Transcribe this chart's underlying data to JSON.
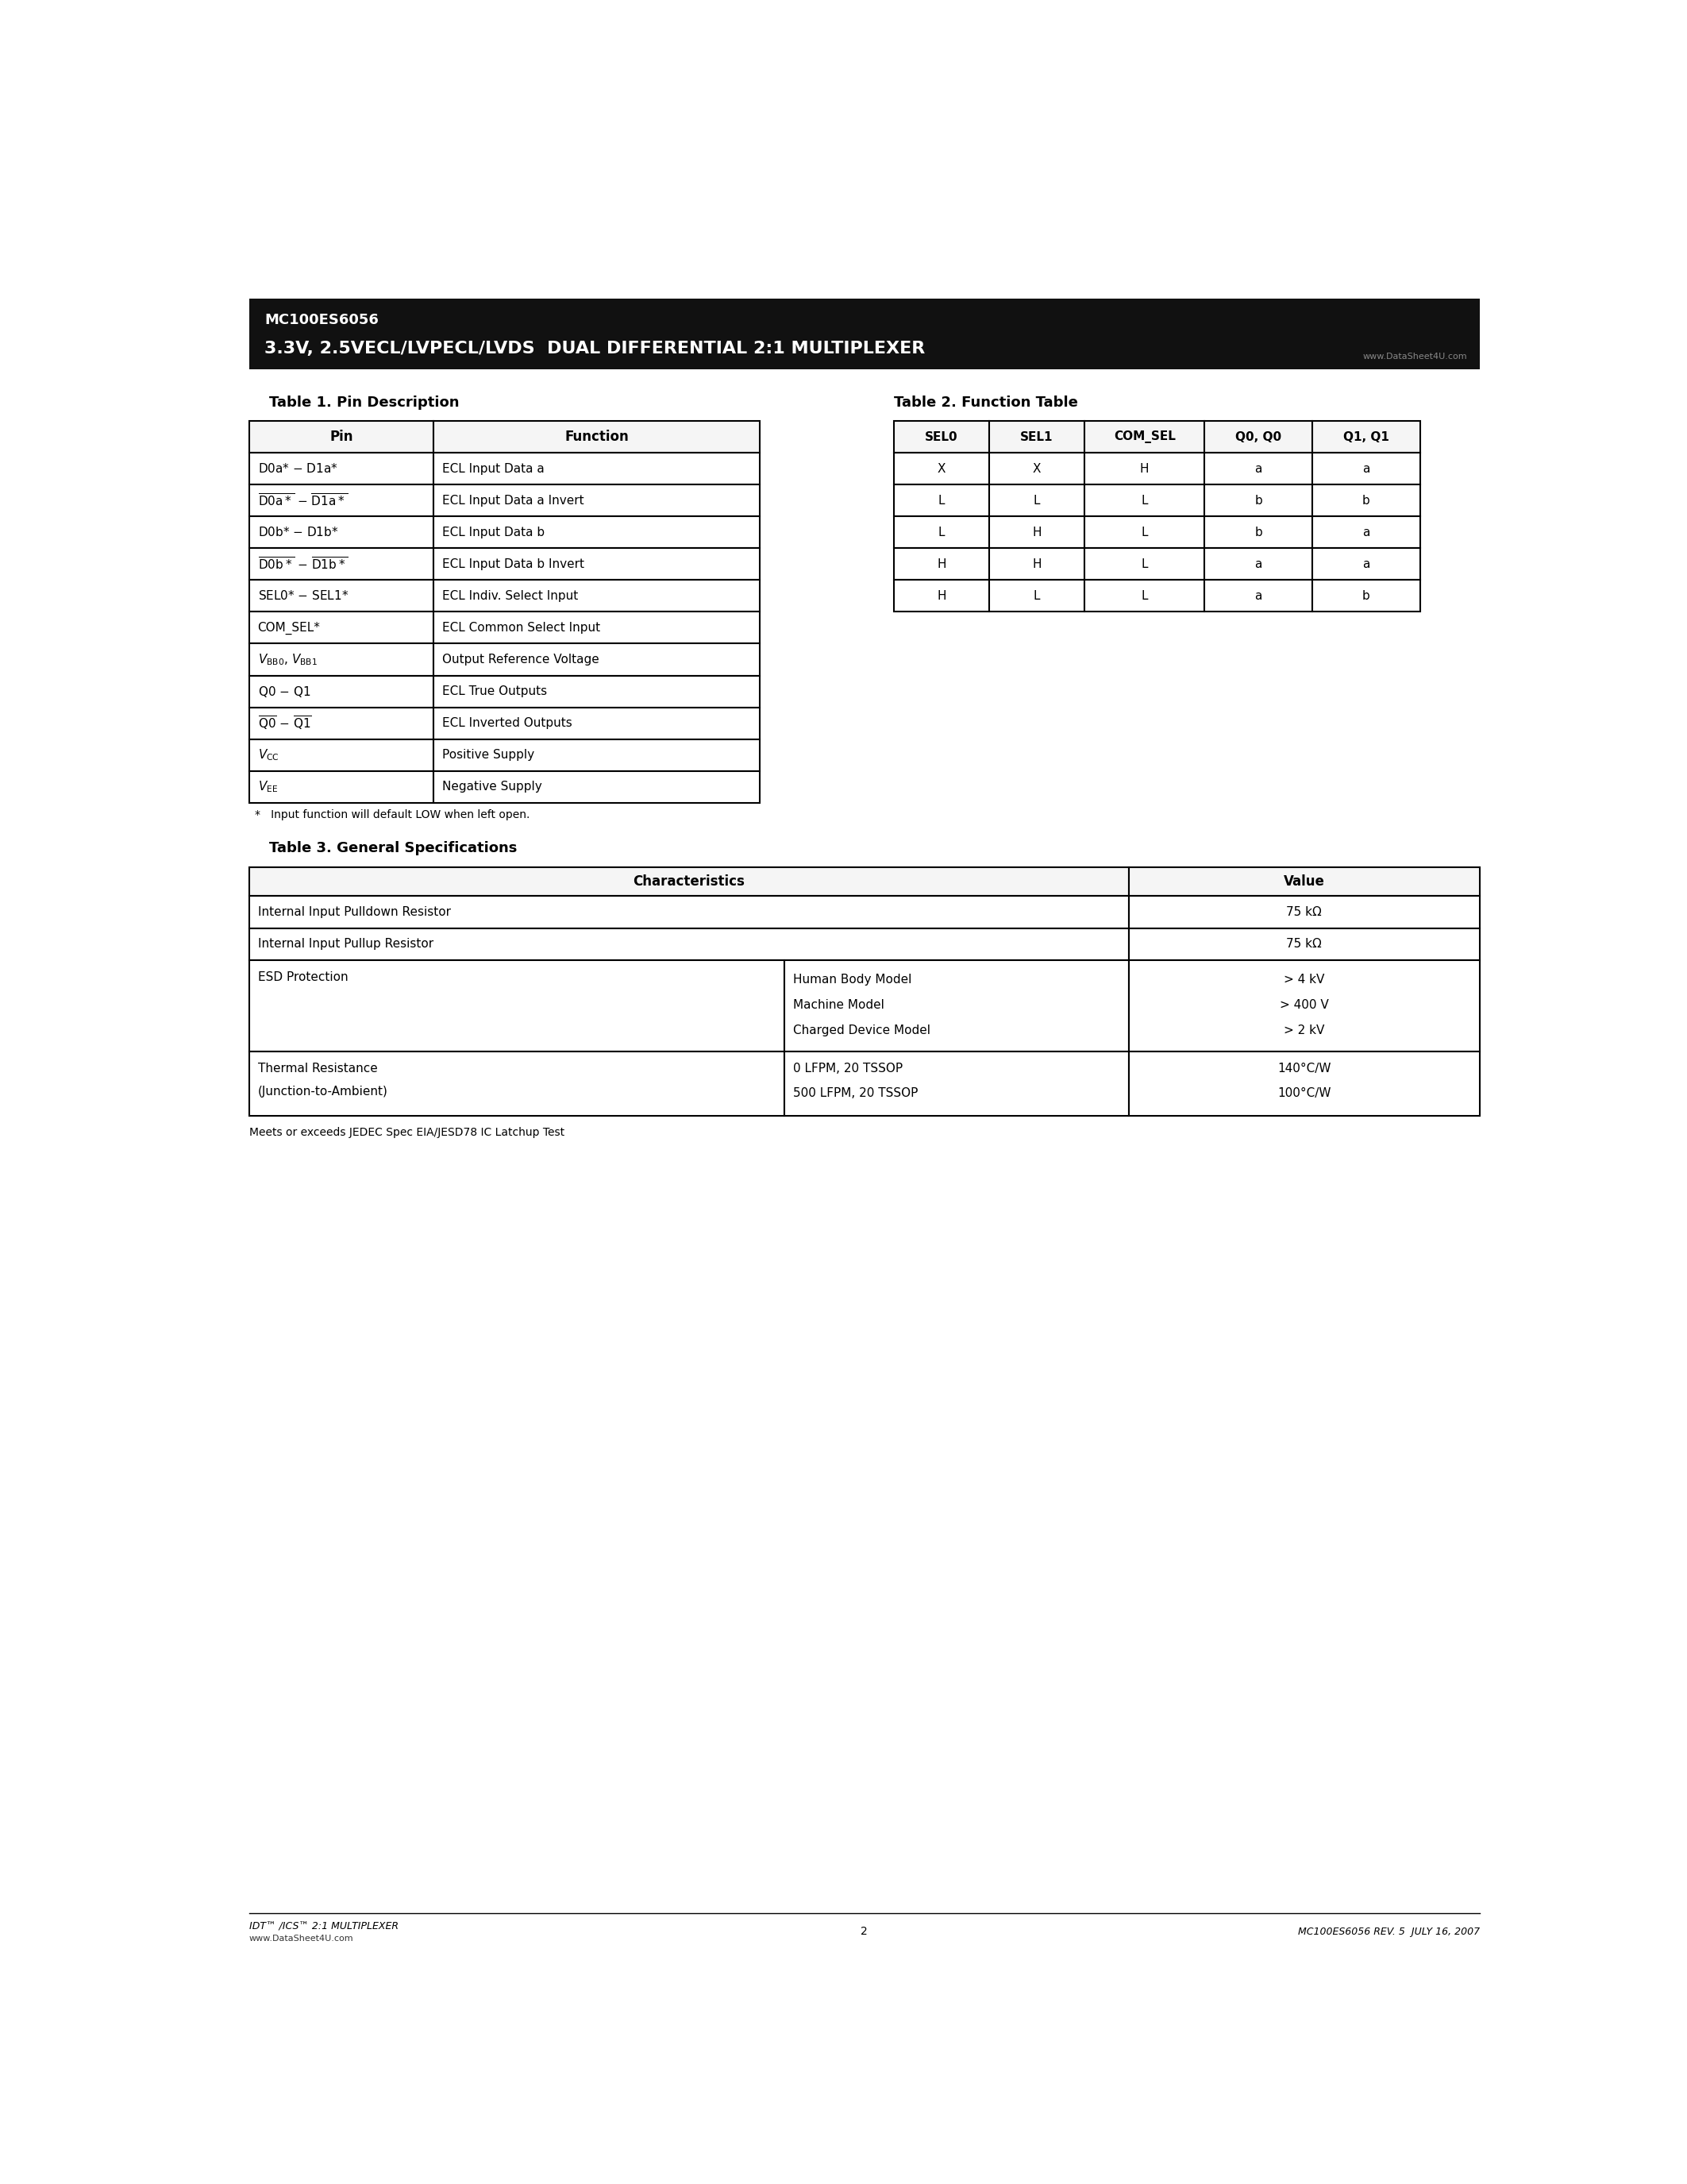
{
  "page_bg": "#ffffff",
  "header_bg": "#111111",
  "header_text1": "MC100ES6056",
  "header_text2": "3.3V, 2.5VECL/LVPECL/LVDS  DUAL DIFFERENTIAL 2:1 MULTIPLEXER",
  "watermark": "www.DataSheet4U.com",
  "table1_title": "Table 1. Pin Description",
  "table2_title": "Table 2. Function Table",
  "table2_headers": [
    "SEL0",
    "SEL1",
    "COM_SEL",
    "Q0, Q0",
    "Q1, Q1"
  ],
  "table2_rows": [
    [
      "X",
      "X",
      "H",
      "a",
      "a"
    ],
    [
      "L",
      "L",
      "L",
      "b",
      "b"
    ],
    [
      "L",
      "H",
      "L",
      "b",
      "a"
    ],
    [
      "H",
      "H",
      "L",
      "a",
      "a"
    ],
    [
      "H",
      "L",
      "L",
      "a",
      "b"
    ]
  ],
  "table3_title": "Table 3. General Specifications",
  "table3_footnote": "Meets or exceeds JEDEC Spec EIA/JESD78 IC Latchup Test",
  "footer_left1": "IDT™ /ICS™ 2:1 MULTIPLEXER",
  "footer_left2": "www.DataSheet4U.com",
  "footer_center": "2",
  "footer_right": "MC100ES6056 REV. 5  JULY 16, 2007"
}
